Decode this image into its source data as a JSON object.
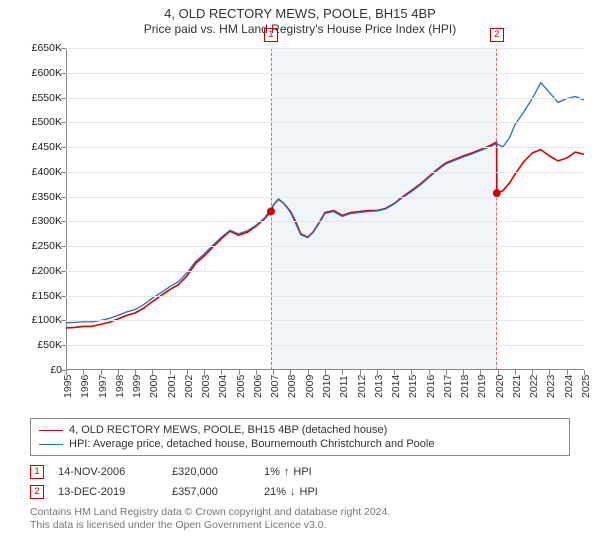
{
  "title": "4, OLD RECTORY MEWS, POOLE, BH15 4BP",
  "subtitle": "Price paid vs. HM Land Registry's House Price Index (HPI)",
  "chart": {
    "type": "line",
    "background_color": "#ffffff",
    "shaded_band_color": "#eff5f9",
    "shaded_dash_color": "#d66",
    "grid_color": "#e6e6e6",
    "axis_color": "#888888",
    "label_fontsize": 10.5,
    "y": {
      "min": 0,
      "max": 650000,
      "step": 50000,
      "prefix": "£",
      "tick_format": "K",
      "labels": [
        "£0",
        "£50K",
        "£100K",
        "£150K",
        "£200K",
        "£250K",
        "£300K",
        "£350K",
        "£400K",
        "£450K",
        "£500K",
        "£550K",
        "£600K",
        "£650K"
      ]
    },
    "x": {
      "min": 1995,
      "max": 2025,
      "step": 1,
      "labels": [
        "1995",
        "1996",
        "1997",
        "1998",
        "1999",
        "2000",
        "2001",
        "2002",
        "2003",
        "2004",
        "2005",
        "2006",
        "2007",
        "2008",
        "2009",
        "2010",
        "2011",
        "2012",
        "2013",
        "2014",
        "2015",
        "2016",
        "2017",
        "2018",
        "2019",
        "2020",
        "2021",
        "2022",
        "2023",
        "2024",
        "2025"
      ]
    },
    "shaded_band": {
      "x_start": 2006.87,
      "x_end": 2019.95
    },
    "series": [
      {
        "id": "property",
        "label": "4, OLD RECTORY MEWS, POOLE, BH15 4BP (detached house)",
        "color": "#d90000",
        "width": 1.6,
        "points": [
          [
            1995.0,
            85000
          ],
          [
            1995.5,
            86000
          ],
          [
            1996.0,
            88000
          ],
          [
            1996.5,
            88000
          ],
          [
            1997.0,
            92000
          ],
          [
            1997.5,
            96000
          ],
          [
            1998.0,
            103000
          ],
          [
            1998.5,
            110000
          ],
          [
            1999.0,
            115000
          ],
          [
            1999.5,
            125000
          ],
          [
            2000.0,
            138000
          ],
          [
            2000.5,
            150000
          ],
          [
            2001.0,
            162000
          ],
          [
            2001.5,
            172000
          ],
          [
            2002.0,
            190000
          ],
          [
            2002.5,
            215000
          ],
          [
            2003.0,
            230000
          ],
          [
            2003.5,
            248000
          ],
          [
            2004.0,
            265000
          ],
          [
            2004.5,
            280000
          ],
          [
            2005.0,
            272000
          ],
          [
            2005.5,
            278000
          ],
          [
            2006.0,
            290000
          ],
          [
            2006.5,
            305000
          ],
          [
            2006.87,
            320000
          ],
          [
            2007.0,
            332000
          ],
          [
            2007.3,
            345000
          ],
          [
            2007.6,
            337000
          ],
          [
            2008.0,
            320000
          ],
          [
            2008.3,
            300000
          ],
          [
            2008.6,
            275000
          ],
          [
            2009.0,
            268000
          ],
          [
            2009.3,
            278000
          ],
          [
            2009.7,
            300000
          ],
          [
            2010.0,
            318000
          ],
          [
            2010.5,
            322000
          ],
          [
            2011.0,
            312000
          ],
          [
            2011.5,
            318000
          ],
          [
            2012.0,
            320000
          ],
          [
            2012.5,
            322000
          ],
          [
            2013.0,
            322000
          ],
          [
            2013.5,
            326000
          ],
          [
            2014.0,
            336000
          ],
          [
            2014.5,
            350000
          ],
          [
            2015.0,
            362000
          ],
          [
            2015.5,
            375000
          ],
          [
            2016.0,
            390000
          ],
          [
            2016.5,
            405000
          ],
          [
            2017.0,
            418000
          ],
          [
            2017.5,
            425000
          ],
          [
            2018.0,
            432000
          ],
          [
            2018.5,
            438000
          ],
          [
            2019.0,
            445000
          ],
          [
            2019.5,
            452000
          ],
          [
            2019.94,
            460000
          ],
          [
            2019.95,
            357000
          ],
          [
            2020.3,
            362000
          ],
          [
            2020.7,
            378000
          ],
          [
            2021.0,
            395000
          ],
          [
            2021.5,
            420000
          ],
          [
            2022.0,
            438000
          ],
          [
            2022.5,
            445000
          ],
          [
            2023.0,
            432000
          ],
          [
            2023.5,
            422000
          ],
          [
            2024.0,
            428000
          ],
          [
            2024.5,
            440000
          ],
          [
            2025.0,
            435000
          ]
        ]
      },
      {
        "id": "hpi",
        "label": "HPI: Average price, detached house, Bournemouth Christchurch and Poole",
        "color": "#2b6fb5",
        "width": 1.3,
        "points": [
          [
            1995.0,
            95000
          ],
          [
            1995.5,
            96000
          ],
          [
            1996.0,
            97000
          ],
          [
            1996.5,
            97000
          ],
          [
            1997.0,
            100000
          ],
          [
            1997.5,
            104000
          ],
          [
            1998.0,
            110000
          ],
          [
            1998.5,
            117000
          ],
          [
            1999.0,
            122000
          ],
          [
            1999.5,
            132000
          ],
          [
            2000.0,
            145000
          ],
          [
            2000.5,
            156000
          ],
          [
            2001.0,
            168000
          ],
          [
            2001.5,
            178000
          ],
          [
            2002.0,
            196000
          ],
          [
            2002.5,
            219000
          ],
          [
            2003.0,
            234000
          ],
          [
            2003.5,
            252000
          ],
          [
            2004.0,
            268000
          ],
          [
            2004.5,
            282000
          ],
          [
            2005.0,
            275000
          ],
          [
            2005.5,
            281000
          ],
          [
            2006.0,
            292000
          ],
          [
            2006.5,
            307000
          ],
          [
            2007.0,
            332000
          ],
          [
            2007.3,
            344000
          ],
          [
            2007.6,
            337000
          ],
          [
            2008.0,
            318000
          ],
          [
            2008.3,
            296000
          ],
          [
            2008.6,
            273000
          ],
          [
            2009.0,
            267000
          ],
          [
            2009.3,
            277000
          ],
          [
            2009.7,
            298000
          ],
          [
            2010.0,
            316000
          ],
          [
            2010.5,
            320000
          ],
          [
            2011.0,
            310000
          ],
          [
            2011.5,
            316000
          ],
          [
            2012.0,
            318000
          ],
          [
            2012.5,
            320000
          ],
          [
            2013.0,
            321000
          ],
          [
            2013.5,
            325000
          ],
          [
            2014.0,
            335000
          ],
          [
            2014.5,
            348000
          ],
          [
            2015.0,
            360000
          ],
          [
            2015.5,
            373000
          ],
          [
            2016.0,
            388000
          ],
          [
            2016.5,
            403000
          ],
          [
            2017.0,
            416000
          ],
          [
            2017.5,
            423000
          ],
          [
            2018.0,
            430000
          ],
          [
            2018.5,
            436000
          ],
          [
            2019.0,
            443000
          ],
          [
            2019.5,
            450000
          ],
          [
            2019.95,
            457000
          ],
          [
            2020.3,
            450000
          ],
          [
            2020.7,
            470000
          ],
          [
            2021.0,
            495000
          ],
          [
            2021.5,
            520000
          ],
          [
            2022.0,
            548000
          ],
          [
            2022.5,
            580000
          ],
          [
            2023.0,
            560000
          ],
          [
            2023.5,
            540000
          ],
          [
            2024.0,
            548000
          ],
          [
            2024.5,
            552000
          ],
          [
            2025.0,
            545000
          ]
        ]
      }
    ],
    "markers": [
      {
        "n": "1",
        "x": 2006.87,
        "y_top": true,
        "dot": {
          "x": 2006.87,
          "y": 320000
        }
      },
      {
        "n": "2",
        "x": 2019.95,
        "y_top": true,
        "dot": {
          "x": 2019.95,
          "y": 357000
        }
      }
    ]
  },
  "legend": [
    {
      "color": "#d90000",
      "text": "4, OLD RECTORY MEWS, POOLE, BH15 4BP (detached house)"
    },
    {
      "color": "#2b6fb5",
      "text": "HPI: Average price, detached house, Bournemouth Christchurch and Poole"
    }
  ],
  "transactions": [
    {
      "n": "1",
      "date": "14-NOV-2006",
      "price": "£320,000",
      "diff_pct": "1%",
      "arrow": "↑",
      "diff_label": "HPI"
    },
    {
      "n": "2",
      "date": "13-DEC-2019",
      "price": "£357,000",
      "diff_pct": "21%",
      "arrow": "↓",
      "diff_label": "HPI"
    }
  ],
  "footer_line1": "Contains HM Land Registry data © Crown copyright and database right 2024.",
  "footer_line2": "This data is licensed under the Open Government Licence v3.0.",
  "marker_box_color": "#c00000"
}
